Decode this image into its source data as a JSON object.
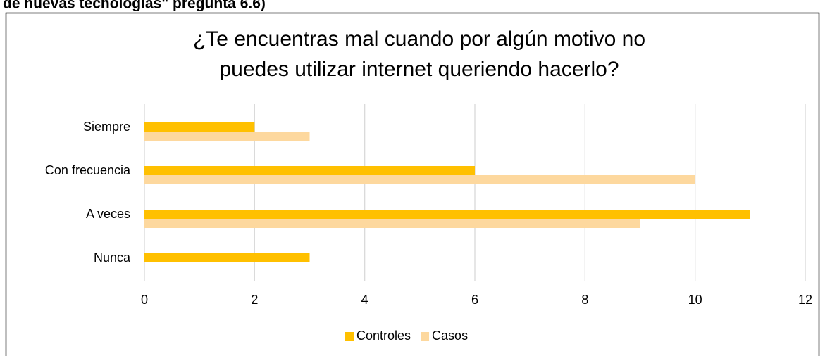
{
  "page_heading": "de nuevas tecnologías\" pregunta 6.6)",
  "chart_data": {
    "type": "hbar",
    "title": [
      "¿Te encuentras mal cuando por algún motivo no",
      "puedes utilizar internet queriendo hacerlo?"
    ],
    "categories": [
      "Siempre",
      "Con frecuencia",
      "A veces",
      "Nunca"
    ],
    "series": [
      {
        "name": "Controles",
        "color": "#ffc000",
        "values": [
          2,
          6,
          11,
          3
        ]
      },
      {
        "name": "Casos",
        "color": "#fdd89e",
        "values": [
          3,
          10,
          9,
          0
        ]
      }
    ],
    "xlim": [
      0,
      12
    ],
    "xticks": [
      0,
      2,
      4,
      6,
      8,
      10,
      12
    ],
    "grid": true,
    "legend": "bottom"
  }
}
